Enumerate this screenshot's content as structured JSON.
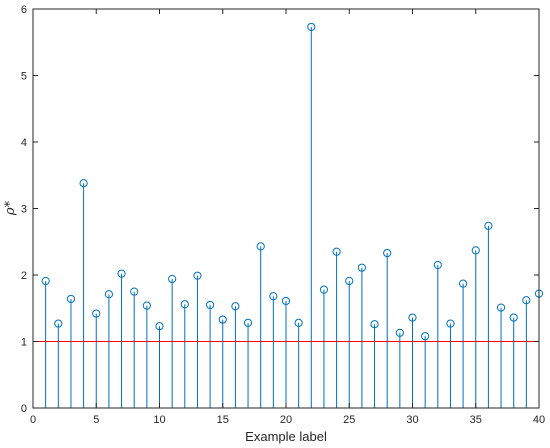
{
  "chart_data": {
    "type": "stem",
    "title": "",
    "xlabel": "Example label",
    "ylabel": "ρ*",
    "xlim": [
      0,
      40
    ],
    "ylim": [
      0,
      6
    ],
    "xticks": [
      0,
      5,
      10,
      15,
      20,
      25,
      30,
      35,
      40
    ],
    "yticks": [
      0,
      1,
      2,
      3,
      4,
      5,
      6
    ],
    "grid": false,
    "series": [
      {
        "x": [
          1,
          2,
          3,
          4,
          5,
          6,
          7,
          8,
          9,
          10,
          11,
          12,
          13,
          14,
          15,
          16,
          17,
          18,
          19,
          20,
          21,
          22,
          23,
          24,
          25,
          26,
          27,
          28,
          29,
          30,
          31,
          32,
          33,
          34,
          35,
          36,
          37,
          38,
          39,
          40
        ],
        "values": [
          1.91,
          1.27,
          1.64,
          3.38,
          1.42,
          1.71,
          2.02,
          1.75,
          1.54,
          1.23,
          1.94,
          1.56,
          1.99,
          1.55,
          1.33,
          1.53,
          1.28,
          2.43,
          1.68,
          1.61,
          1.28,
          5.73,
          1.78,
          2.35,
          1.91,
          2.11,
          1.26,
          2.33,
          1.13,
          1.36,
          1.08,
          2.15,
          1.27,
          1.87,
          2.37,
          2.74,
          1.51,
          1.36,
          1.62,
          1.72
        ],
        "color": "#0072BD"
      }
    ],
    "reference_line": {
      "y": 1,
      "color": "#FF0000"
    }
  }
}
